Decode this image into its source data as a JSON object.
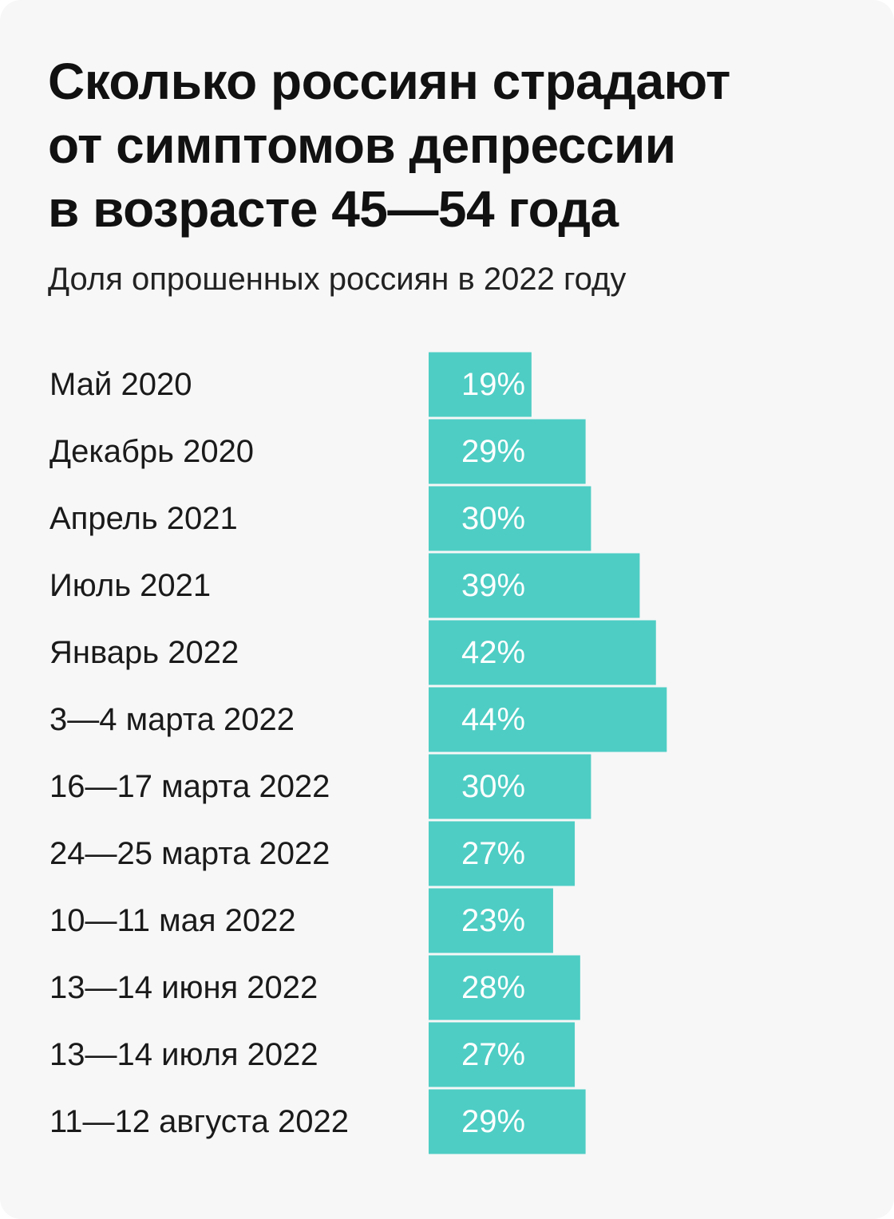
{
  "header": {
    "title_lines": [
      "Сколько россиян страдают",
      "от симптомов депрессии",
      "в возрасте 45—54 года"
    ],
    "subtitle": "Доля опрошенных россиян в 2022 году"
  },
  "colors": {
    "bar": "#4ecdc4",
    "value_text": "#ffffff",
    "label_text": "#1a1a1a",
    "background": "#f7f7f7"
  },
  "chart_data": {
    "type": "bar",
    "orientation": "horizontal",
    "title": "Сколько россиян страдают от симптомов депрессии в возрасте 45—54 года",
    "subtitle": "Доля опрошенных россиян в 2022 году",
    "categories": [
      "Май 2020",
      "Декабрь 2020",
      "Апрель 2021",
      "Июль 2021",
      "Январь 2022",
      "3—4 марта 2022",
      "16—17 марта 2022",
      "24—25 марта 2022",
      "10—11 мая 2022",
      "13—14 июня 2022",
      "13—14 июля 2022",
      "11—12 августа 2022"
    ],
    "values": [
      19,
      29,
      30,
      39,
      42,
      44,
      30,
      27,
      23,
      28,
      27,
      29
    ],
    "value_labels": [
      "19%",
      "29%",
      "30%",
      "39%",
      "42%",
      "44%",
      "30%",
      "27%",
      "23%",
      "28%",
      "27%",
      "29%"
    ],
    "unit": "%",
    "xlim": [
      0,
      44
    ],
    "grid": false,
    "legend": "none"
  }
}
